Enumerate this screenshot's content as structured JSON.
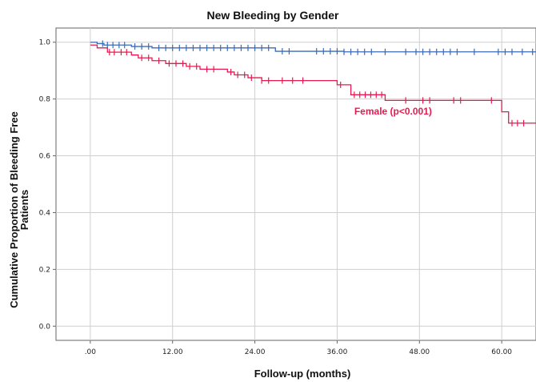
{
  "chart_data": {
    "type": "line",
    "subtype": "kaplan-meier",
    "title": "New Bleeding by Gender",
    "xlabel": "Follow-up (months)",
    "ylabel": "Cumulative Proportion of Bleeding Free Patients",
    "xlim": [
      -5,
      65
    ],
    "ylim": [
      -0.05,
      1.05
    ],
    "x_ticks": [
      0,
      12,
      24,
      36,
      48,
      60
    ],
    "x_tick_labels": [
      ".00",
      "12.00",
      "24.00",
      "36.00",
      "48.00",
      "60.00"
    ],
    "y_ticks": [
      0.0,
      0.2,
      0.4,
      0.6,
      0.8,
      1.0
    ],
    "y_tick_labels": [
      "0.0",
      "0.2",
      "0.4",
      "0.6",
      "0.8",
      "1.0"
    ],
    "grid": true,
    "series": [
      {
        "color": "#3b6bb5",
        "steps": [
          [
            0,
            1.0
          ],
          [
            1,
            0.995
          ],
          [
            2,
            0.99
          ],
          [
            6,
            0.985
          ],
          [
            9,
            0.98
          ],
          [
            27,
            0.968
          ],
          [
            37,
            0.966
          ],
          [
            65,
            0.966
          ]
        ],
        "censored": [
          1.8,
          2.5,
          3.3,
          4.2,
          5.0,
          6.5,
          7.5,
          8.5,
          10,
          11,
          12,
          13,
          14,
          15,
          16,
          17,
          18,
          19,
          20,
          21,
          22,
          23,
          24,
          25,
          26,
          28,
          29,
          33,
          34,
          35,
          36,
          37,
          38,
          39,
          40,
          41,
          43,
          46,
          47.5,
          48.5,
          49.5,
          50.5,
          51.5,
          52.5,
          53.5,
          56,
          59.5,
          60.5,
          61.5,
          63,
          64.5
        ]
      },
      {
        "color": "#e8194f",
        "steps": [
          [
            0,
            0.99
          ],
          [
            1,
            0.98
          ],
          [
            2.5,
            0.965
          ],
          [
            6,
            0.955
          ],
          [
            7,
            0.945
          ],
          [
            9,
            0.935
          ],
          [
            11,
            0.925
          ],
          [
            14,
            0.915
          ],
          [
            16,
            0.905
          ],
          [
            20,
            0.895
          ],
          [
            21,
            0.885
          ],
          [
            23,
            0.875
          ],
          [
            25,
            0.865
          ],
          [
            36,
            0.85
          ],
          [
            38,
            0.815
          ],
          [
            43,
            0.795
          ],
          [
            59.5,
            0.795
          ],
          [
            60,
            0.755
          ],
          [
            61,
            0.715
          ],
          [
            65,
            0.715
          ]
        ],
        "censored": [
          2.8,
          3.5,
          4.5,
          5.3,
          7.5,
          8.5,
          10,
          11.5,
          12.5,
          13.5,
          14.5,
          15.5,
          17,
          18,
          20.5,
          21.5,
          22.5,
          23.5,
          25,
          26,
          28,
          29.5,
          31,
          36.5,
          38.5,
          39.3,
          40.1,
          40.9,
          41.7,
          42.5,
          46,
          48.5,
          49.5,
          53,
          54,
          58.5,
          61.5,
          62.3,
          63.2
        ]
      }
    ],
    "annotations": [
      {
        "text": "Female (p<0.001)",
        "x": 38.5,
        "y": 0.745,
        "color": "#e8194f"
      }
    ]
  }
}
